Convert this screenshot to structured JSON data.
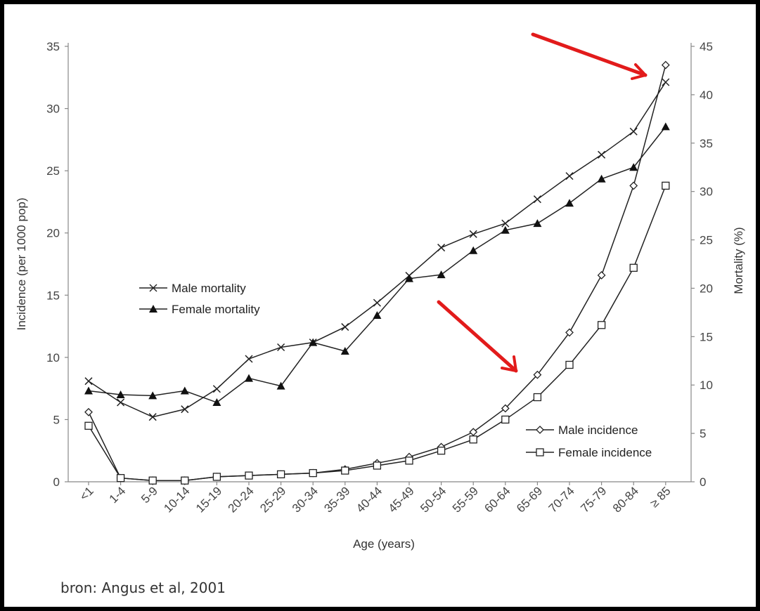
{
  "chart_data": {
    "type": "line",
    "categories": [
      "<1",
      "1-4",
      "5-9",
      "10-14",
      "15-19",
      "20-24",
      "25-29",
      "30-34",
      "35-39",
      "40-44",
      "45-49",
      "50-54",
      "55-59",
      "60-64",
      "65-69",
      "70-74",
      "75-79",
      "80-84",
      "≥ 85"
    ],
    "xlabel": "Age (years)",
    "ylabel_left": "Incidence (per 1000 pop)",
    "ylabel_right": "Mortality (%)",
    "ylim_left": [
      0,
      35
    ],
    "ylim_right": [
      0,
      45
    ],
    "yticks_left": [
      "0",
      "5",
      "10",
      "15",
      "20",
      "25",
      "30",
      "35"
    ],
    "yticks_right": [
      "0",
      "5",
      "10",
      "15",
      "20",
      "25",
      "30",
      "35",
      "40",
      "45"
    ],
    "series": [
      {
        "name": "Male mortality",
        "axis": "right",
        "marker": "x",
        "values": [
          10.4,
          8.2,
          6.7,
          7.5,
          9.6,
          12.7,
          13.9,
          14.4,
          16.0,
          18.5,
          21.3,
          24.2,
          25.6,
          26.7,
          29.2,
          31.6,
          33.8,
          36.2,
          41.3
        ]
      },
      {
        "name": "Female mortality",
        "axis": "right",
        "marker": "triangle",
        "values": [
          9.4,
          9.0,
          8.9,
          9.4,
          8.2,
          10.7,
          9.9,
          14.4,
          13.5,
          17.2,
          21.0,
          21.4,
          23.9,
          26.0,
          26.7,
          28.8,
          31.3,
          32.5,
          36.7
        ]
      },
      {
        "name": "Male incidence",
        "axis": "left",
        "marker": "diamond",
        "values": [
          5.6,
          0.3,
          0.1,
          0.1,
          0.4,
          0.5,
          0.6,
          0.7,
          1.0,
          1.5,
          2.0,
          2.8,
          4.0,
          5.9,
          8.6,
          12.0,
          16.6,
          23.8,
          33.5
        ]
      },
      {
        "name": "Female incidence",
        "axis": "left",
        "marker": "square",
        "values": [
          4.5,
          0.3,
          0.1,
          0.1,
          0.4,
          0.5,
          0.6,
          0.7,
          0.9,
          1.3,
          1.7,
          2.5,
          3.4,
          5.0,
          6.8,
          9.4,
          12.6,
          17.2,
          23.8
        ]
      }
    ],
    "legends": [
      {
        "position": "center-left",
        "entries": [
          "Male mortality",
          "Female mortality"
        ]
      },
      {
        "position": "bottom-right",
        "entries": [
          "Male incidence",
          "Female incidence"
        ]
      }
    ],
    "annotations": [
      "red arrow pointing to ≥ 85 peak",
      "red arrow pointing to 65-69 rise"
    ],
    "arrow_color": "#e21b1b",
    "grid": false
  },
  "source_note": "bron: Angus et al, 2001"
}
